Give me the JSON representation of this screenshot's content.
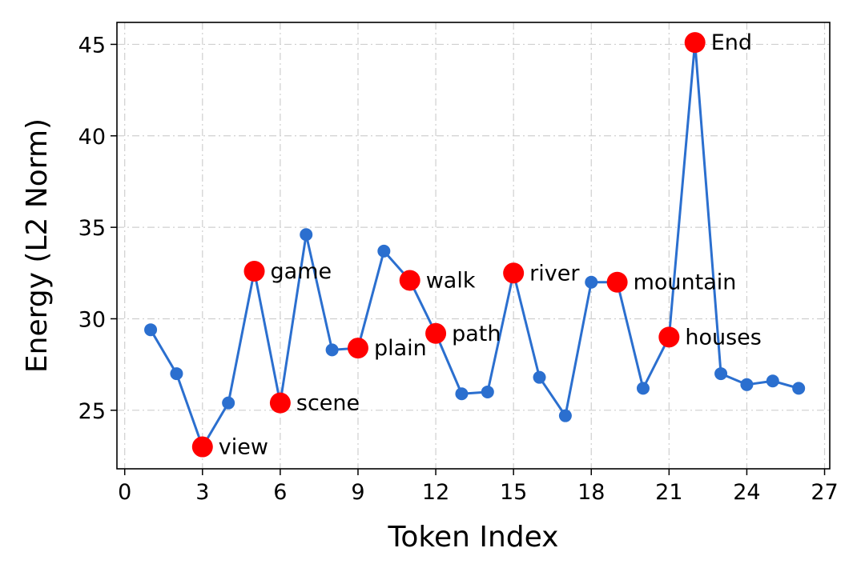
{
  "chart_data": {
    "type": "line",
    "xlabel": "Token Index",
    "ylabel": "Energy (L2 Norm)",
    "xlim": [
      -0.3,
      27.2
    ],
    "ylim": [
      21.8,
      46.2
    ],
    "xticks": [
      0,
      3,
      6,
      9,
      12,
      15,
      18,
      21,
      24,
      27
    ],
    "yticks": [
      25,
      30,
      35,
      40,
      45
    ],
    "grid": true,
    "series": [
      {
        "color": "#2b6fcf",
        "x": [
          1,
          2,
          3,
          4,
          5,
          6,
          7,
          8,
          9,
          10,
          11,
          12,
          13,
          14,
          15,
          16,
          17,
          18,
          19,
          20,
          21,
          22,
          23,
          24,
          25,
          26
        ],
        "y": [
          29.4,
          27.0,
          23.0,
          25.4,
          32.6,
          25.4,
          34.6,
          28.3,
          28.4,
          33.7,
          32.1,
          29.2,
          25.9,
          26.0,
          32.5,
          26.8,
          24.7,
          32.0,
          32.0,
          26.2,
          29.0,
          45.1,
          27.0,
          26.4,
          26.6,
          26.2
        ]
      }
    ],
    "highlights": {
      "color": "#ff0000",
      "points": [
        {
          "x": 3,
          "y": 23.0,
          "label": "view"
        },
        {
          "x": 5,
          "y": 32.6,
          "label": "game"
        },
        {
          "x": 6,
          "y": 25.4,
          "label": "scene"
        },
        {
          "x": 9,
          "y": 28.4,
          "label": "plain"
        },
        {
          "x": 11,
          "y": 32.1,
          "label": "walk"
        },
        {
          "x": 12,
          "y": 29.2,
          "label": "path"
        },
        {
          "x": 15,
          "y": 32.5,
          "label": "river"
        },
        {
          "x": 19,
          "y": 32.0,
          "label": "mountain"
        },
        {
          "x": 21,
          "y": 29.0,
          "label": "houses"
        },
        {
          "x": 22,
          "y": 45.1,
          "label": "End"
        }
      ]
    }
  }
}
